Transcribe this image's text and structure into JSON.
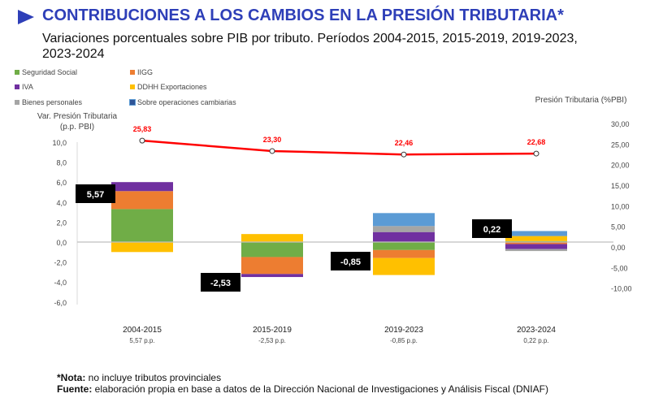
{
  "title": "CONTRIBUCIONES A LOS CAMBIOS EN LA PRESIÓN TRIBUTARIA*",
  "subtitle": "Variaciones porcentuales sobre PIB por tributo. Períodos 2004-2015, 2015-2019, 2019-2023, 2023-2024",
  "footnote": {
    "nota_label": "*Nota:",
    "nota_text": " no incluye tributos provinciales",
    "fuente_label": "Fuente:",
    "fuente_text": " elaboración propia en base a datos de la Dirección Nacional de Investigaciones y Análisis Fiscal (DNIAF)"
  },
  "chart_data": {
    "type": "bar",
    "stacked": true,
    "categories": [
      "2004-2015",
      "2015-2019",
      "2019-2023",
      "2023-2024"
    ],
    "category_sublabels": [
      "5,57 p.p.",
      "-2,53 p.p.",
      "-0,85 p.p.",
      "0,22 p.p."
    ],
    "totals": [
      "5,57",
      "-2,53",
      "-0,85",
      "0,22"
    ],
    "ylabel": "Var. Presión Tributaria (p.p. PBI)",
    "ylim": [
      -6,
      10
    ],
    "yticks": [
      "-6,0",
      "-4,0",
      "-2,0",
      "0,0",
      "2,0",
      "4,0",
      "6,0",
      "8,0",
      "10,0"
    ],
    "y2label": "Presión Tributaria (%PBI)",
    "y2lim": [
      -10,
      30
    ],
    "y2ticks": [
      "-10,00",
      "-5,00",
      "0,00",
      "5,00",
      "10,00",
      "15,00",
      "20,00",
      "25,00",
      "30,00"
    ],
    "series": [
      {
        "name": "Seguridad Social",
        "color": "#70ad47",
        "values": [
          3.3,
          -1.5,
          -0.8,
          0.1
        ]
      },
      {
        "name": "IIGG",
        "color": "#ed7d31",
        "values": [
          1.8,
          -1.7,
          -0.8,
          -0.2
        ]
      },
      {
        "name": "IVA",
        "color": "#7030a0",
        "values": [
          0.9,
          -0.3,
          1.0,
          -0.5
        ]
      },
      {
        "name": "DDHH Exportaciones",
        "color": "#ffc000",
        "values": [
          -1.0,
          0.8,
          -1.7,
          0.5
        ]
      },
      {
        "name": "Bienes personales",
        "color": "#a5a5a5",
        "values": [
          0,
          0,
          0.6,
          -0.2
        ]
      },
      {
        "name": "Sobre operaciones cambiarias",
        "color": "#5b9bd5",
        "values": [
          0,
          0,
          1.3,
          0.5
        ]
      }
    ],
    "line": {
      "name": "Presión Tributaria (%PBI)",
      "color": "#ff0000",
      "values": [
        25.83,
        23.3,
        22.46,
        22.68
      ],
      "labels": [
        "25,83",
        "23,30",
        "22,46",
        "22,68"
      ]
    }
  }
}
